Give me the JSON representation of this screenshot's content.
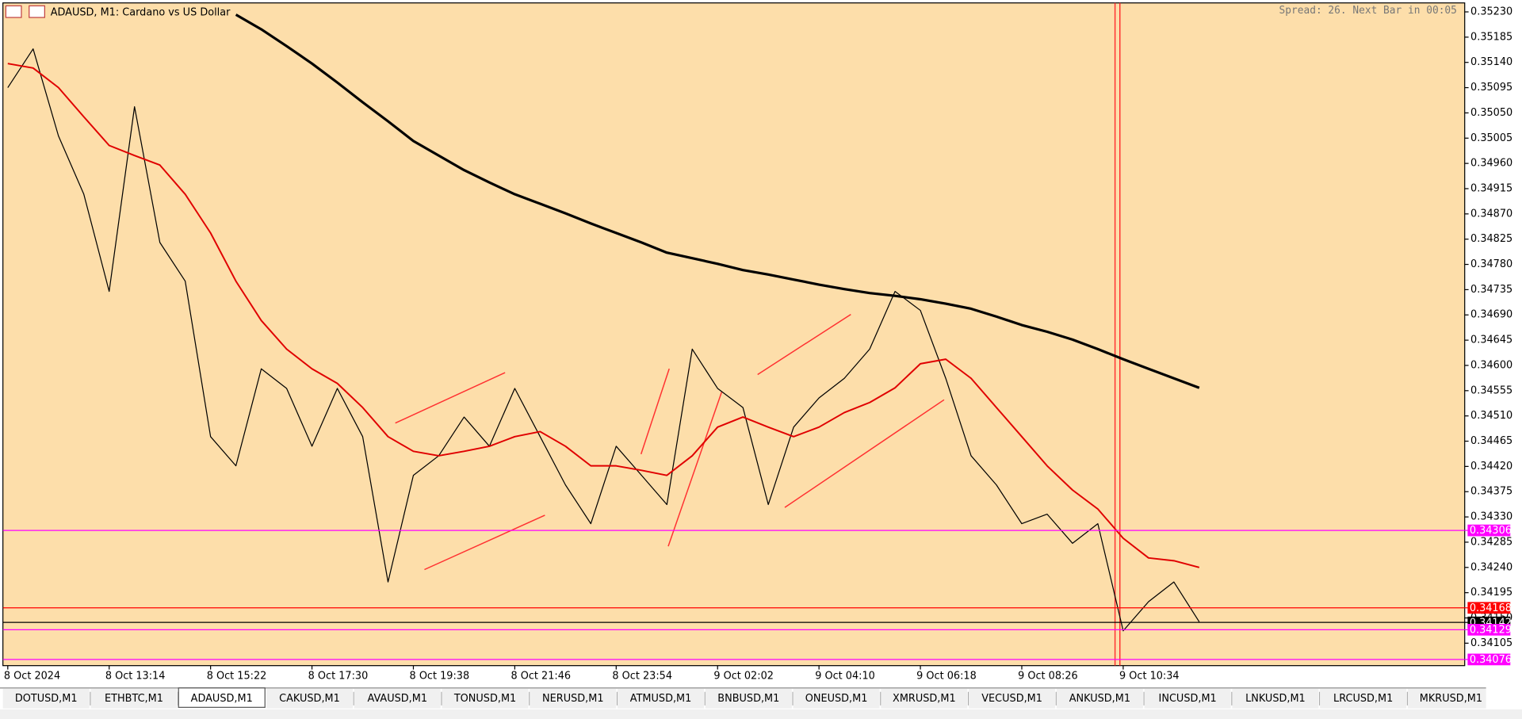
{
  "header": {
    "title": "ADAUSD, M1:  Cardano vs US Dollar",
    "status": "Spread: 26. Next Bar in 00:05"
  },
  "chart_data": {
    "type": "line",
    "categories": [
      "8 Oct 2024",
      null,
      null,
      null,
      "8 Oct 13:14",
      null,
      null,
      null,
      "8 Oct 15:22",
      null,
      null,
      null,
      "8 Oct 17:30",
      null,
      null,
      null,
      "8 Oct 19:38",
      null,
      null,
      null,
      "8 Oct 21:46",
      null,
      null,
      null,
      "8 Oct 23:54",
      null,
      null,
      null,
      "9 Oct 02:02",
      null,
      null,
      null,
      "9 Oct 04:10",
      null,
      null,
      null,
      "9 Oct 06:18",
      null,
      null,
      null,
      "9 Oct 08:26",
      null,
      null,
      null,
      "9 Oct 10:34",
      null,
      null,
      null
    ],
    "series": [
      {
        "color": "#000000",
        "width": 1,
        "values": [
          0.35095,
          0.35164,
          0.35009,
          0.34905,
          0.34732,
          0.35061,
          0.34819,
          0.3475,
          0.34473,
          0.34421,
          0.34594,
          0.34559,
          0.34456,
          0.34559,
          0.34473,
          0.34214,
          0.34404,
          0.34439,
          0.34508,
          0.34456,
          0.34559,
          0.34473,
          0.34387,
          0.34318,
          0.34456,
          0.34404,
          0.34352,
          0.34629,
          0.34559,
          0.34525,
          0.34352,
          0.3449,
          0.34542,
          0.34577,
          0.34629,
          0.34732,
          0.34698,
          0.34577,
          0.34439,
          0.34387,
          0.34318,
          0.34335,
          0.34283,
          0.34318,
          0.34127,
          0.34179,
          0.34214,
          0.34143
        ]
      },
      {
        "color": "#e00000",
        "width": 1.6,
        "values": [
          0.35138,
          0.3513,
          0.35095,
          0.35043,
          0.34992,
          0.34974,
          0.34957,
          0.34905,
          0.34836,
          0.3475,
          0.3468,
          0.34629,
          0.34594,
          0.34568,
          0.34525,
          0.34473,
          0.34447,
          0.34439,
          0.34447,
          0.34456,
          0.34473,
          0.34482,
          0.34456,
          0.34421,
          0.34421,
          0.34413,
          0.34404,
          0.34439,
          0.3449,
          0.34508,
          0.3449,
          0.34473,
          0.3449,
          0.34516,
          0.34534,
          0.3456,
          0.34603,
          0.34611,
          0.34577,
          0.34525,
          0.34473,
          0.34421,
          0.34378,
          0.34344,
          0.34292,
          0.34257,
          0.34252,
          0.3424
        ]
      },
      {
        "color": "#000000",
        "width": 2.6,
        "values": [
          null,
          null,
          null,
          null,
          null,
          null,
          null,
          null,
          null,
          0.35225,
          0.35199,
          0.35169,
          0.35138,
          0.35104,
          0.35069,
          0.35035,
          0.35,
          0.34974,
          0.34948,
          0.34926,
          0.34905,
          0.34888,
          0.34871,
          0.34853,
          0.34836,
          0.34819,
          0.34801,
          0.34791,
          0.34781,
          0.3477,
          0.34762,
          0.34753,
          0.34744,
          0.34736,
          0.34729,
          0.34724,
          0.34718,
          0.3471,
          0.34701,
          0.34687,
          0.34672,
          0.3466,
          0.34646,
          0.34629,
          0.34611,
          0.34594,
          0.34577,
          0.3456
        ]
      }
    ],
    "ylim": [
      0.34065,
      0.35246
    ],
    "yticks": [
      {
        "value": 0.3523,
        "label": "0.35230"
      },
      0.35185,
      {
        "value": 0.3514,
        "label": "0.35140"
      },
      0.35095,
      {
        "value": 0.3505,
        "label": "0.35050"
      },
      0.35005,
      {
        "value": 0.3496,
        "label": "0.34960"
      },
      0.34915,
      {
        "value": 0.3487,
        "label": "0.34870"
      },
      0.34825,
      {
        "value": 0.3478,
        "label": "0.34780"
      },
      0.34735,
      {
        "value": 0.3469,
        "label": "0.34690"
      },
      0.34645,
      {
        "value": 0.346,
        "label": "0.34600"
      },
      0.34555,
      {
        "value": 0.3451,
        "label": "0.34510"
      },
      0.34465,
      {
        "value": 0.3442,
        "label": "0.34420"
      },
      0.34375,
      {
        "value": 0.3433,
        "label": "0.34330"
      },
      0.34285,
      {
        "value": 0.3424,
        "label": "0.34240"
      },
      0.34195,
      {
        "value": 0.3415,
        "label": "0.34150"
      },
      0.34105
    ],
    "levels": [
      {
        "value": 0.34306,
        "color": "#ff00ff"
      },
      {
        "value": 0.34168,
        "color": "#ff0000"
      },
      {
        "value": 0.34142,
        "color": "#000000"
      },
      {
        "value": 0.34129,
        "color": "#ff00ff"
      },
      {
        "value": 0.34076,
        "color": "#ff00ff"
      }
    ],
    "background": "#fddeaa"
  },
  "tabs": {
    "active": 2,
    "items": [
      "DOTUSD,M1",
      "ETHBTC,M1",
      "ADAUSD,M1",
      "CAKUSD,M1",
      "AVAUSD,M1",
      "TONUSD,M1",
      "NERUSD,M1",
      "ATMUSD,M1",
      "BNBUSD,M1",
      "ONEUSD,M1",
      "XMRUSD,M1",
      "VECUSD,M1",
      "ANKUSD,M1",
      "INCUSD,M1",
      "LNKUSD,M1",
      "LRCUSD,M1",
      "MKRUSD,M1"
    ]
  }
}
